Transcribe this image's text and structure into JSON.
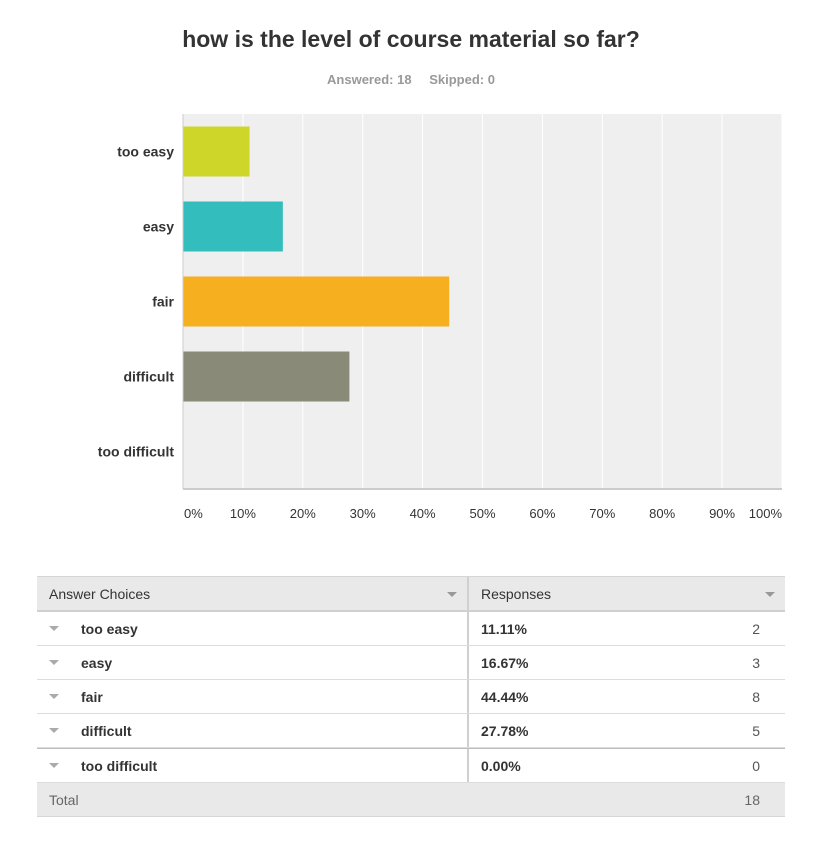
{
  "title": "how is the level of course material so far?",
  "answered": "Answered: 18",
  "skipped": "Skipped: 0",
  "chart_data": {
    "type": "bar",
    "orientation": "horizontal",
    "categories": [
      "too easy",
      "easy",
      "fair",
      "difficult",
      "too difficult"
    ],
    "values": [
      11.11,
      16.67,
      44.44,
      27.78,
      0
    ],
    "colors": [
      "#cdd629",
      "#33bdbd",
      "#f6af1f",
      "#8a8a78",
      "#c9c9c9"
    ],
    "xlim": [
      0,
      100
    ],
    "ticks": [
      "0%",
      "10%",
      "20%",
      "30%",
      "40%",
      "50%",
      "60%",
      "70%",
      "80%",
      "90%",
      "100%"
    ],
    "grid": true,
    "plot_background": "#efefef"
  },
  "table": {
    "headers": {
      "choices": "Answer Choices",
      "responses": "Responses"
    },
    "rows": [
      {
        "choice": "too easy",
        "pct": "11.11%",
        "count": "2"
      },
      {
        "choice": "easy",
        "pct": "16.67%",
        "count": "3"
      },
      {
        "choice": "fair",
        "pct": "44.44%",
        "count": "8"
      },
      {
        "choice": "difficult",
        "pct": "27.78%",
        "count": "5"
      },
      {
        "choice": "too difficult",
        "pct": "0.00%",
        "count": "0"
      }
    ],
    "total_label": "Total",
    "total_value": "18"
  }
}
